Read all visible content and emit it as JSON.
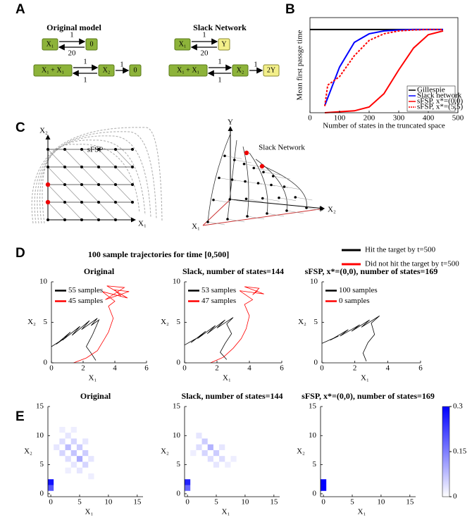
{
  "panel_labels": [
    "A",
    "B",
    "C",
    "D",
    "E"
  ],
  "panel_a": {
    "original": {
      "title": "Original model",
      "row1": [
        "X₁",
        "0"
      ],
      "row1_rates": [
        "1",
        "20"
      ],
      "row2": [
        "X₁ + X₁",
        "X₂",
        "0"
      ],
      "row2_rates": [
        "1",
        "1",
        "1"
      ]
    },
    "slack": {
      "title": "Slack Network",
      "row1": [
        "X₁",
        "Y"
      ],
      "row1_rates": [
        "1",
        "20"
      ],
      "row2": [
        "X₁ + X₁",
        "X₂",
        "2Y"
      ],
      "row2_rates": [
        "1",
        "1",
        "1"
      ]
    }
  },
  "panel_c": {
    "left": {
      "title": "sFSP",
      "y_axis": "X₂",
      "x_axis": "X₁"
    },
    "right": {
      "title": "Slack Network",
      "y_axis": "Y",
      "x1_axis": "X₁",
      "x2_axis": "X₂"
    }
  },
  "panel_d": {
    "title": "100 sample trajectories for time [0,500]",
    "legend": [
      "Hit the target by t=500",
      "Did not hit the target by t=500"
    ],
    "legend_colors": [
      "#000000",
      "#ff0000"
    ]
  },
  "chart_data": [
    {
      "type": "line",
      "box": true,
      "xlabel": "Number of states in the truncated space",
      "ylabel": "Mean first passge time",
      "xlim": [
        0,
        500
      ],
      "xticks": [
        0,
        100,
        200,
        300,
        400,
        500
      ],
      "ylim": [
        0,
        1000
      ],
      "legend": "lower right",
      "series": [
        {
          "name": "Gillespie",
          "color": "#000000",
          "x": [
            0,
            450
          ],
          "values": [
            875,
            875
          ]
        },
        {
          "name": "Slack network",
          "color": "#0000ff",
          "x": [
            50,
            100,
            150,
            200,
            250,
            300,
            350,
            400,
            450
          ],
          "values": [
            75,
            480,
            740,
            830,
            860,
            870,
            875,
            875,
            875
          ]
        },
        {
          "name": "sFSP, x*=(0,0)",
          "color": "#ff0000",
          "x": [
            50,
            100,
            150,
            200,
            250,
            300,
            350,
            400,
            450
          ],
          "values": [
            0,
            10,
            20,
            60,
            200,
            450,
            680,
            820,
            860
          ]
        },
        {
          "name": "sFSP, x*=(5,5)",
          "color": "#ff0000",
          "dash": true,
          "x": [
            50,
            60,
            100,
            150,
            200,
            250,
            300,
            350,
            400,
            450
          ],
          "values": [
            70,
            290,
            380,
            600,
            760,
            830,
            860,
            870,
            875,
            875
          ]
        }
      ]
    },
    {
      "type": "line",
      "title": "Original",
      "xlabel": "X₁",
      "ylabel": "X₂",
      "xlim": [
        0,
        6
      ],
      "xticks": [
        0,
        2,
        4,
        6
      ],
      "ylim": [
        0,
        10
      ],
      "yticks": [
        0,
        5,
        10
      ],
      "legend": "upper left",
      "series": [
        {
          "name": "55 samples",
          "color": "#000000",
          "x": [
            0,
            0.8,
            0.3,
            1.2,
            0.7,
            1.8,
            1.3,
            2.4,
            1.9,
            2.9,
            2.5,
            3.0,
            2.6,
            2.2,
            2.5,
            2.8
          ],
          "values": [
            2,
            3,
            2.3,
            3.8,
            2.8,
            4.5,
            3.4,
            5.2,
            4.1,
            5.5,
            4.6,
            5.3,
            3.5,
            2.0,
            1.2,
            0.3
          ]
        },
        {
          "name": "45 samples",
          "color": "#ff0000",
          "x": [
            1.4,
            2.2,
            2.9,
            3.3,
            3.6,
            3.9,
            3.6,
            4.0,
            3.2,
            4.8,
            3.5,
            4.6,
            3.4,
            4.9,
            4.0,
            4.4
          ],
          "values": [
            0,
            0.6,
            1.5,
            2.8,
            3.8,
            5.5,
            7.0,
            7.6,
            8.8,
            8.0,
            9.5,
            9.3,
            7.8,
            8.8,
            9.0,
            8.2
          ]
        }
      ]
    },
    {
      "type": "line",
      "title": "Slack, number of states=144",
      "xlabel": "X₁",
      "ylabel": "X₂",
      "xlim": [
        0,
        6
      ],
      "xticks": [
        0,
        2,
        4,
        6
      ],
      "ylim": [
        0,
        10
      ],
      "yticks": [
        0,
        5,
        10
      ],
      "legend": "upper left",
      "series": [
        {
          "name": "53 samples",
          "color": "#000000",
          "x": [
            0,
            0.8,
            0.4,
            1.3,
            0.8,
            1.9,
            1.4,
            2.5,
            2.0,
            3.0,
            2.6,
            2.9,
            2.5,
            2.2,
            2.6
          ],
          "values": [
            2.2,
            3.1,
            2.5,
            3.9,
            3.0,
            4.6,
            3.6,
            5.3,
            4.3,
            5.6,
            4.8,
            3.6,
            2.4,
            1.3,
            0.4
          ]
        },
        {
          "name": "47 samples",
          "color": "#ff0000",
          "x": [
            1.6,
            2.4,
            3.0,
            3.5,
            3.8,
            4.0,
            3.7,
            4.2,
            3.4,
            4.9,
            3.7,
            4.6,
            4.2,
            4.5
          ],
          "values": [
            0,
            0.7,
            1.8,
            3.0,
            4.2,
            5.8,
            7.2,
            7.8,
            8.9,
            8.5,
            9.4,
            9.2,
            8.4,
            8.9
          ]
        }
      ]
    },
    {
      "type": "line",
      "title": "sFSP, x*=(0,0), number of states=169",
      "xlabel": "X₁",
      "ylabel": "X₂",
      "xlim": [
        0,
        6
      ],
      "xticks": [
        0,
        2,
        4,
        6
      ],
      "ylim": [
        0,
        10
      ],
      "yticks": [
        0,
        5,
        10
      ],
      "legend": "upper left",
      "series": [
        {
          "name": "100 samples",
          "color": "#000000",
          "x": [
            0,
            1.0,
            0.5,
            1.6,
            1.1,
            2.3,
            1.8,
            2.9,
            2.4,
            3.5,
            3.0,
            3.2,
            2.8,
            2.5,
            2.7
          ],
          "values": [
            2.4,
            3.3,
            2.8,
            4.1,
            3.3,
            4.7,
            3.9,
            5.3,
            4.4,
            5.8,
            4.9,
            3.5,
            2.5,
            1.2,
            0.2
          ]
        },
        {
          "name": "0 samples",
          "color": "#ff0000",
          "x": [],
          "values": []
        }
      ]
    },
    {
      "type": "heatmap",
      "title": "Original",
      "xlabel": "X₁",
      "ylabel": "X₂",
      "xlim": [
        -0.5,
        16
      ],
      "xticks": [
        0,
        5,
        10,
        15
      ],
      "ylim": [
        -0.5,
        15
      ],
      "yticks": [
        0,
        5,
        10,
        15
      ],
      "colormap": [
        "#ffffff",
        "#0000ff"
      ],
      "clim": [
        0,
        0.3
      ],
      "cells_x": [
        0,
        0,
        1,
        2,
        2,
        3,
        3,
        3,
        4,
        4,
        4,
        5,
        5,
        5,
        6,
        6,
        6,
        7,
        7,
        2,
        4,
        3
      ],
      "cells_y": [
        1,
        2,
        8,
        7,
        9,
        6,
        8,
        10,
        5,
        7,
        9,
        4,
        6,
        8,
        5,
        7,
        9,
        6,
        3,
        11,
        11,
        4
      ],
      "values": [
        0.2,
        0.28,
        0.03,
        0.05,
        0.04,
        0.04,
        0.08,
        0.03,
        0.03,
        0.07,
        0.05,
        0.03,
        0.1,
        0.06,
        0.05,
        0.06,
        0.03,
        0.03,
        0.02,
        0.02,
        0.02,
        0.02
      ]
    },
    {
      "type": "heatmap",
      "title": "Slack, number of states=144",
      "xlabel": "X₁",
      "ylabel": "X₂",
      "xlim": [
        -0.5,
        16
      ],
      "xticks": [
        0,
        5,
        10,
        15
      ],
      "ylim": [
        -0.5,
        15
      ],
      "yticks": [
        0,
        5,
        10,
        15
      ],
      "colormap": [
        "#ffffff",
        "#0000ff"
      ],
      "clim": [
        0,
        0.3
      ],
      "cells_x": [
        0,
        0,
        2,
        3,
        3,
        4,
        4,
        5,
        5,
        6,
        6,
        7,
        8,
        2,
        1
      ],
      "cells_y": [
        1,
        2,
        8,
        9,
        7,
        8,
        6,
        7,
        5,
        6,
        8,
        5,
        6,
        10,
        7
      ],
      "values": [
        0.18,
        0.26,
        0.04,
        0.06,
        0.05,
        0.09,
        0.04,
        0.06,
        0.03,
        0.04,
        0.03,
        0.02,
        0.02,
        0.03,
        0.02
      ]
    },
    {
      "type": "heatmap",
      "title": "sFSP, x*=(0,0), number of states=169",
      "xlabel": "X₁",
      "ylabel": "X₂",
      "xlim": [
        -0.5,
        16
      ],
      "xticks": [
        0,
        5,
        10,
        15
      ],
      "ylim": [
        -0.5,
        15
      ],
      "yticks": [
        0,
        5,
        10,
        15
      ],
      "colormap": [
        "#ffffff",
        "#0000ff"
      ],
      "clim": [
        0,
        0.3
      ],
      "colorbar": true,
      "colorbar_ticks": [
        0,
        0.15,
        0.3
      ],
      "cells_x": [
        0,
        0
      ],
      "cells_y": [
        1,
        2
      ],
      "values": [
        0.3,
        0.3
      ]
    }
  ]
}
